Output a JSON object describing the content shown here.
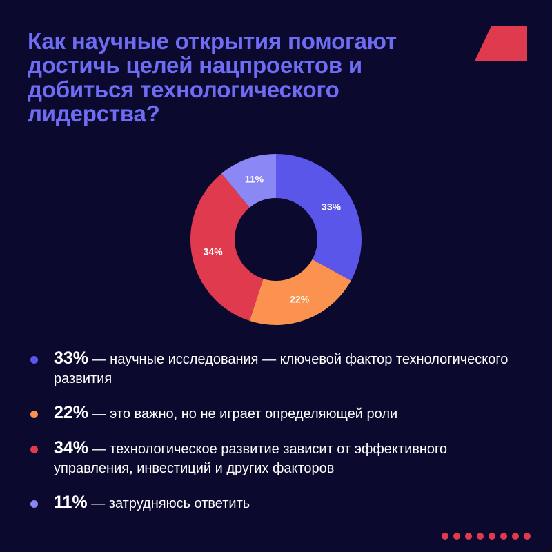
{
  "header": {
    "title": "Как научные открытия помогают достичь целей нацпроектов и добиться технологического лидерства?"
  },
  "colors": {
    "background": "#0b0a2e",
    "title": "#6f6cf4",
    "accent": "#e03a4e"
  },
  "chart_data": {
    "type": "pie",
    "style": "donut",
    "categories": [
      "научные исследования — ключевой фактор технологического развития",
      "это важно, но не играет определяющей роли",
      "технологическое развитие зависит от эффективного управления, инвестиций и других факторов",
      "затрудняюсь ответить"
    ],
    "values": [
      33,
      22,
      34,
      11
    ],
    "labels": [
      "33%",
      "22%",
      "34%",
      "11%"
    ],
    "colors": [
      "#5a56ea",
      "#fb9250",
      "#e03a4e",
      "#8b87f4"
    ]
  },
  "legend": {
    "items": [
      {
        "pct": "33%",
        "text": " — научные исследования — ключевой фактор технологического развития",
        "color": "#5a56ea"
      },
      {
        "pct": "22%",
        "text": " — это важно, но не играет определяющей роли",
        "color": "#fb9250"
      },
      {
        "pct": "34%",
        "text": " — технологическое развитие зависит от эффективного управления, инвестиций и других факторов",
        "color": "#e03a4e"
      },
      {
        "pct": "11%",
        "text": " — затрудняюсь ответить",
        "color": "#8b87f4"
      }
    ]
  },
  "decor": {
    "corner_icon": "parallelogram-logo-icon",
    "pager_icon": "dots-pager-icon",
    "pager_count": 8
  }
}
